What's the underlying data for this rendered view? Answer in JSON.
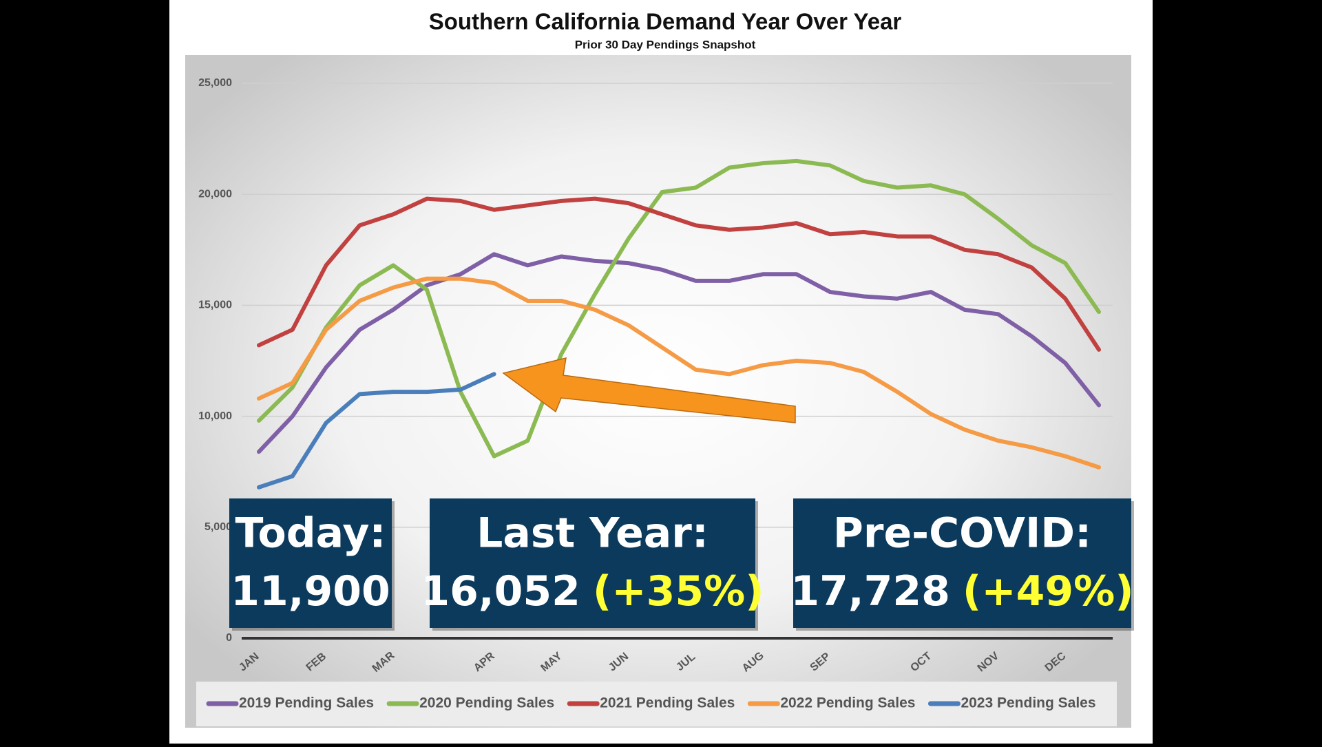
{
  "chart_data": {
    "type": "line",
    "title": "Southern California Demand Year Over Year",
    "subtitle": "Prior 30 Day Pendings Snapshot",
    "categories": [
      "JAN",
      null,
      "FEB",
      null,
      "MAR",
      null,
      null,
      "APR",
      null,
      "MAY",
      null,
      "JUN",
      null,
      "JUL",
      null,
      "AUG",
      null,
      "SEP",
      null,
      null,
      "OCT",
      null,
      "NOV",
      null,
      "DEC",
      null
    ],
    "series": [
      {
        "name": "2019 Pending Sales",
        "color": "#7f5fa6",
        "values": [
          8400,
          10000,
          12200,
          13900,
          14800,
          15900,
          16400,
          17300,
          16800,
          17200,
          17000,
          16900,
          16600,
          16100,
          16100,
          16400,
          16400,
          15600,
          15400,
          15300,
          15600,
          14800,
          14600,
          13600,
          12400,
          10500
        ]
      },
      {
        "name": "2020 Pending Sales",
        "color": "#8cba52",
        "values": [
          9800,
          11300,
          14000,
          15900,
          16800,
          15700,
          11100,
          8200,
          8900,
          12800,
          15500,
          18000,
          20100,
          20300,
          21200,
          21400,
          21500,
          21300,
          20600,
          20300,
          20400,
          20000,
          18900,
          17700,
          16900,
          14700
        ]
      },
      {
        "name": "2021 Pending Sales",
        "color": "#c0413f",
        "values": [
          13200,
          13900,
          16800,
          18600,
          19100,
          19800,
          19700,
          19300,
          19500,
          19700,
          19800,
          19600,
          19100,
          18600,
          18400,
          18500,
          18700,
          18200,
          18300,
          18100,
          18100,
          17500,
          17300,
          16700,
          15300,
          13000
        ]
      },
      {
        "name": "2022 Pending Sales",
        "color": "#f59a45",
        "values": [
          10800,
          11500,
          13900,
          15200,
          15800,
          16200,
          16200,
          16000,
          15200,
          15200,
          14800,
          14100,
          13100,
          12100,
          11900,
          12300,
          12500,
          12400,
          12000,
          11100,
          10100,
          9400,
          8900,
          8600,
          8200,
          7700
        ]
      },
      {
        "name": "2023 Pending Sales",
        "color": "#4a7ebb",
        "values": [
          6800,
          7300,
          9700,
          11000,
          11100,
          11100,
          11200,
          11900,
          null,
          null,
          null,
          null,
          null,
          null,
          null,
          null,
          null,
          null,
          null,
          null,
          null,
          null,
          null,
          null,
          null,
          null
        ]
      }
    ],
    "ylim": [
      0,
      25000
    ],
    "yticks": [
      0,
      {
        "value": 5000,
        "label": "5,000"
      },
      {
        "value": 10000,
        "label": "10,000"
      },
      {
        "value": 15000,
        "label": "15,000"
      },
      {
        "value": 20000,
        "label": "20,000"
      },
      {
        "value": 25000,
        "label": "25,000"
      }
    ],
    "grid": true,
    "legend": "bottom",
    "annotations": [
      {
        "heading": "Today:",
        "value": "11,900"
      },
      {
        "heading": "Last Year:",
        "value": "16,052",
        "change": "(+35%)"
      },
      {
        "heading": "Pre-COVID:",
        "value": "17,728",
        "change": "(+49%)"
      }
    ]
  }
}
